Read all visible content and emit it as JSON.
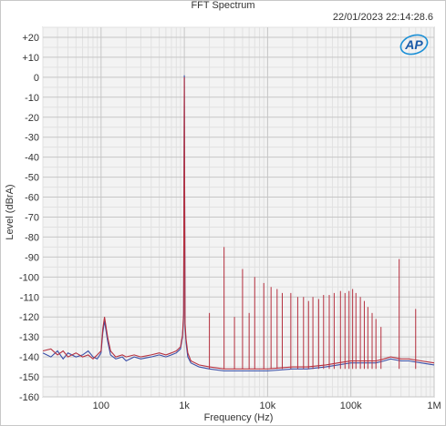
{
  "chart_data": {
    "type": "line",
    "title": "FFT Spectrum",
    "timestamp": "22/01/2023 22:14:28.6",
    "logo_text": "AP",
    "xlabel": "Frequency (Hz)",
    "ylabel": "Level (dBrA)",
    "x_scale": "log",
    "xlim": [
      20,
      1000000
    ],
    "ylim": [
      -160,
      25
    ],
    "x_ticks": [
      {
        "value": 100,
        "label": "100"
      },
      {
        "value": 1000,
        "label": "1k"
      },
      {
        "value": 10000,
        "label": "10k"
      },
      {
        "value": 100000,
        "label": "100k"
      },
      {
        "value": 1000000,
        "label": "1M"
      }
    ],
    "y_ticks": [
      {
        "value": 20,
        "label": "+20"
      },
      {
        "value": 10,
        "label": "+10"
      },
      {
        "value": 0,
        "label": "0"
      },
      {
        "value": -10,
        "label": "-10"
      },
      {
        "value": -20,
        "label": "-20"
      },
      {
        "value": -30,
        "label": "-30"
      },
      {
        "value": -40,
        "label": "-40"
      },
      {
        "value": -50,
        "label": "-50"
      },
      {
        "value": -60,
        "label": "-60"
      },
      {
        "value": -70,
        "label": "-70"
      },
      {
        "value": -80,
        "label": "-80"
      },
      {
        "value": -90,
        "label": "-90"
      },
      {
        "value": -100,
        "label": "-100"
      },
      {
        "value": -110,
        "label": "-110"
      },
      {
        "value": -120,
        "label": "-120"
      },
      {
        "value": -130,
        "label": "-130"
      },
      {
        "value": -140,
        "label": "-140"
      },
      {
        "value": -150,
        "label": "-150"
      },
      {
        "value": -160,
        "label": "-160"
      }
    ],
    "grid": true,
    "plot_background": "#f3f3f3",
    "series": [
      {
        "color": "#3a4fa8",
        "x": [
          20,
          25,
          30,
          35,
          40,
          50,
          60,
          70,
          80,
          90,
          100,
          105,
          110,
          120,
          130,
          150,
          180,
          200,
          250,
          300,
          400,
          500,
          600,
          700,
          800,
          900,
          950,
          980,
          1000,
          1020,
          1050,
          1100,
          1200,
          1500,
          2000,
          3000,
          5000,
          10000,
          20000,
          30000,
          50000,
          70000,
          100000,
          150000,
          200000,
          250000,
          300000,
          400000,
          500000,
          700000,
          1000000
        ],
        "y": [
          -138,
          -140,
          -137,
          -141,
          -138,
          -140,
          -139,
          -137,
          -140,
          -141,
          -138,
          -128,
          -122,
          -132,
          -139,
          -141,
          -140,
          -142,
          -140,
          -141,
          -140,
          -139,
          -140,
          -139,
          -138,
          -136,
          -130,
          -120,
          1,
          -125,
          -133,
          -140,
          -143,
          -145,
          -146,
          -147,
          -147,
          -147,
          -146,
          -146,
          -145,
          -144,
          -143,
          -143,
          -143,
          -142,
          -141,
          -142,
          -142,
          -143,
          -144
        ]
      },
      {
        "color": "#b5303f",
        "x": [
          20,
          25,
          30,
          35,
          40,
          50,
          60,
          70,
          80,
          90,
          100,
          105,
          110,
          120,
          130,
          150,
          180,
          200,
          250,
          300,
          400,
          500,
          600,
          700,
          800,
          900,
          950,
          980,
          1000,
          1020,
          1050,
          1100,
          1200,
          1500,
          2000,
          3000,
          5000,
          10000,
          20000,
          30000,
          50000,
          70000,
          100000,
          150000,
          200000,
          250000,
          300000,
          400000,
          500000,
          700000,
          1000000
        ],
        "y": [
          -137,
          -136,
          -139,
          -137,
          -140,
          -138,
          -140,
          -139,
          -141,
          -139,
          -137,
          -126,
          -120,
          -130,
          -137,
          -140,
          -139,
          -140,
          -139,
          -140,
          -139,
          -138,
          -139,
          -138,
          -137,
          -135,
          -129,
          -118,
          0,
          -123,
          -131,
          -138,
          -142,
          -144,
          -145,
          -146,
          -146,
          -146,
          -145,
          -145,
          -144,
          -143,
          -142,
          -142,
          -142,
          -141,
          -140,
          -141,
          -141,
          -142,
          -143
        ]
      }
    ],
    "harmonic_spurs": [
      {
        "x": 2000,
        "y": -118
      },
      {
        "x": 3000,
        "y": -85
      },
      {
        "x": 4000,
        "y": -120
      },
      {
        "x": 5000,
        "y": -96
      },
      {
        "x": 6000,
        "y": -118
      },
      {
        "x": 7000,
        "y": -100
      },
      {
        "x": 9000,
        "y": -103
      },
      {
        "x": 11000,
        "y": -105
      },
      {
        "x": 13000,
        "y": -106
      },
      {
        "x": 15000,
        "y": -108
      },
      {
        "x": 19000,
        "y": -108
      },
      {
        "x": 23000,
        "y": -110
      },
      {
        "x": 27000,
        "y": -110
      },
      {
        "x": 31000,
        "y": -112
      },
      {
        "x": 35000,
        "y": -110
      },
      {
        "x": 41000,
        "y": -111
      },
      {
        "x": 47000,
        "y": -109
      },
      {
        "x": 55000,
        "y": -109
      },
      {
        "x": 63000,
        "y": -108
      },
      {
        "x": 75000,
        "y": -107
      },
      {
        "x": 85000,
        "y": -108
      },
      {
        "x": 95000,
        "y": -107
      },
      {
        "x": 105000,
        "y": -106
      },
      {
        "x": 115000,
        "y": -108
      },
      {
        "x": 130000,
        "y": -110
      },
      {
        "x": 145000,
        "y": -112
      },
      {
        "x": 160000,
        "y": -115
      },
      {
        "x": 180000,
        "y": -118
      },
      {
        "x": 200000,
        "y": -121
      },
      {
        "x": 230000,
        "y": -125
      },
      {
        "x": 380000,
        "y": -91
      },
      {
        "x": 600000,
        "y": -116
      }
    ]
  }
}
